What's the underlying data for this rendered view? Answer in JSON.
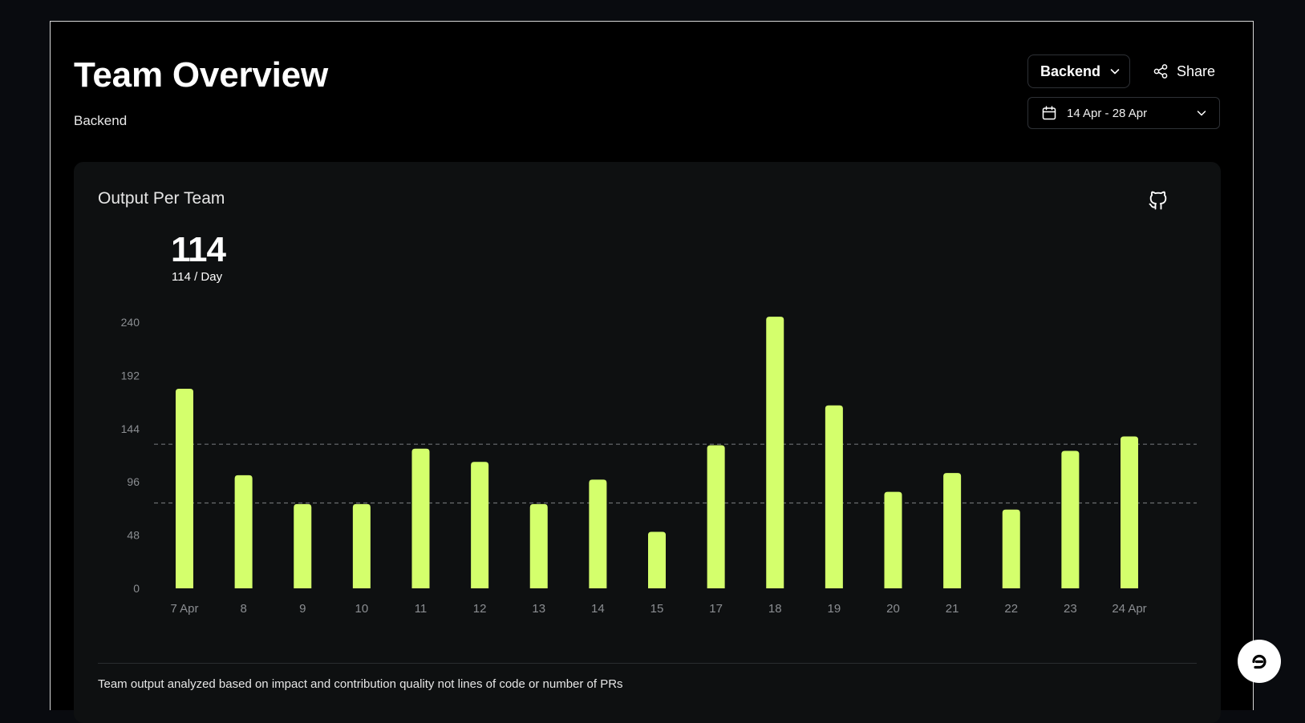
{
  "header": {
    "title": "Team Overview",
    "subtitle": "Backend"
  },
  "controls": {
    "team_select_value": "Backend",
    "share_label": "Share",
    "date_range": "14 Apr - 28 Apr"
  },
  "card": {
    "title": "Output Per Team",
    "big_value": "114",
    "per_day": "114 / Day",
    "footnote": "Team output analyzed based on impact and contribution quality not lines of code or number of PRs"
  },
  "colors": {
    "bar": "#d4ff6c",
    "background": "#000000",
    "card": "#0e1011",
    "reference_line": "#6b6e72"
  },
  "icons": {
    "team_chevron": "chevron-down-icon",
    "share": "share-icon",
    "date_calendar": "calendar-icon",
    "date_chevron": "chevron-down-icon",
    "github": "github-icon",
    "fab": "chat-icon"
  },
  "chart_data": {
    "type": "bar",
    "title": "",
    "xlabel": "",
    "ylabel": "",
    "categories": [
      "7 Apr",
      "8",
      "9",
      "10",
      "11",
      "12",
      "13",
      "14",
      "15",
      "17",
      "18",
      "19",
      "20",
      "21",
      "22",
      "23",
      "24 Apr"
    ],
    "values": [
      180,
      102,
      76,
      76,
      126,
      114,
      76,
      98,
      51,
      129,
      245,
      165,
      87,
      104,
      71,
      124,
      137
    ],
    "yticks": [
      0,
      48,
      96,
      144,
      192,
      240
    ],
    "ylim": [
      0,
      240
    ],
    "reference_lines": [
      130,
      77
    ],
    "grid": false,
    "legend": "none"
  }
}
